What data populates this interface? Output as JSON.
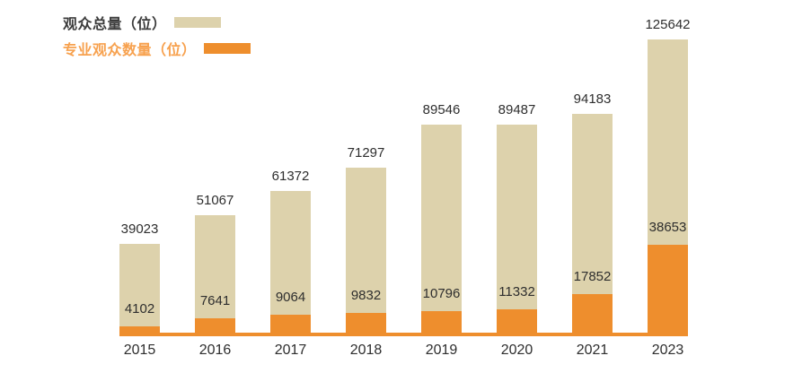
{
  "legend": [
    {
      "label": "观众总量（位）",
      "series_key": "total",
      "swatch_color": "#ddd2ac",
      "text_color": "#3c3c3c"
    },
    {
      "label": "专业观众数量（位）",
      "series_key": "professional",
      "swatch_color": "#ee8e2d",
      "text_color": "#f7a14e"
    }
  ],
  "colors": {
    "total_bar": "#ddd2ac",
    "professional_bar": "#ee8e2d",
    "baseline": "#ee8e2d",
    "value_label": "#2e2e2e"
  },
  "chart_data": {
    "type": "bar",
    "subtype": "overlay-stacked",
    "orientation": "vertical",
    "categories": [
      "2015",
      "2016",
      "2017",
      "2018",
      "2019",
      "2020",
      "2021",
      "2023"
    ],
    "series": [
      {
        "name": "观众总量（位）",
        "values": [
          39023,
          51067,
          61372,
          71297,
          89546,
          89487,
          94183,
          125642
        ],
        "color": "#ddd2ac"
      },
      {
        "name": "专业观众数量（位）",
        "values": [
          4102,
          7641,
          9064,
          9832,
          10796,
          11332,
          17852,
          38653
        ],
        "color": "#ee8e2d"
      }
    ],
    "value_labels_visible": true,
    "ylim": [
      0,
      125642
    ],
    "grid": false,
    "y_axis_visible": false,
    "x_axis_line_color": "#ee8e2d",
    "legend_position": "top-left"
  }
}
